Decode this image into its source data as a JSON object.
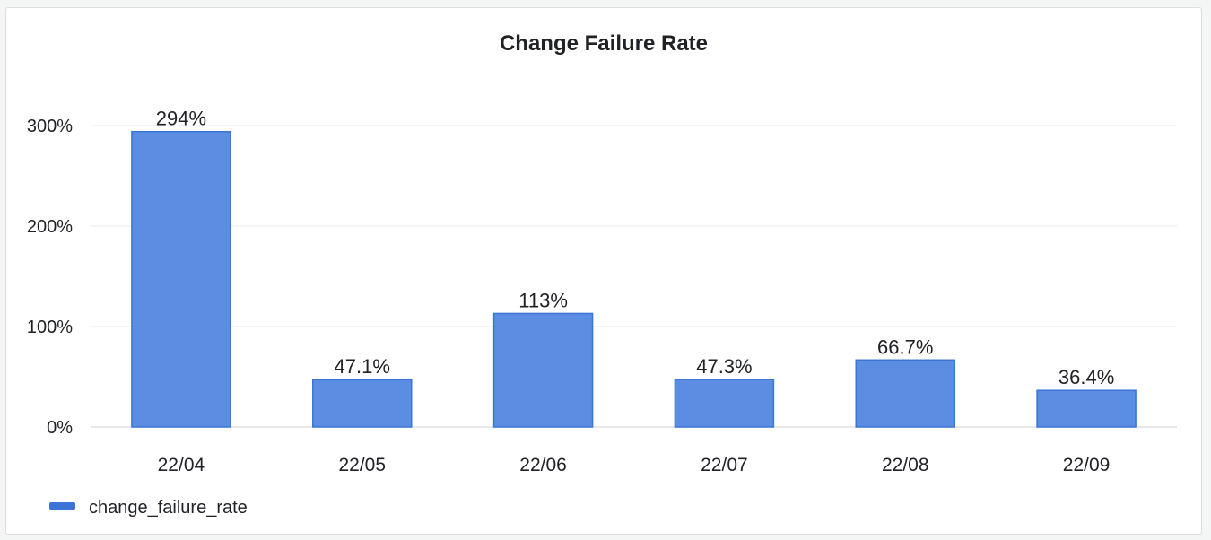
{
  "panel": {
    "title": "Change Failure Rate"
  },
  "chart_data": {
    "type": "bar",
    "title": "Change Failure Rate",
    "categories": [
      "22/04",
      "22/05",
      "22/06",
      "22/07",
      "22/08",
      "22/09"
    ],
    "series": [
      {
        "name": "change_failure_rate",
        "values": [
          294,
          47.1,
          113,
          47.3,
          66.7,
          36.4
        ],
        "labels": [
          "294%",
          "47.1%",
          "113%",
          "47.3%",
          "66.7%",
          "36.4%"
        ],
        "color": "#5b8ee3",
        "border_color": "#3b73d6"
      }
    ],
    "y_unit": "%",
    "yticks": [
      0,
      100,
      200,
      300
    ],
    "ytick_labels": [
      "0%",
      "100%",
      "200%",
      "300%"
    ],
    "ylim": [
      0,
      300
    ],
    "grid": true,
    "legend": "bottom-left"
  }
}
